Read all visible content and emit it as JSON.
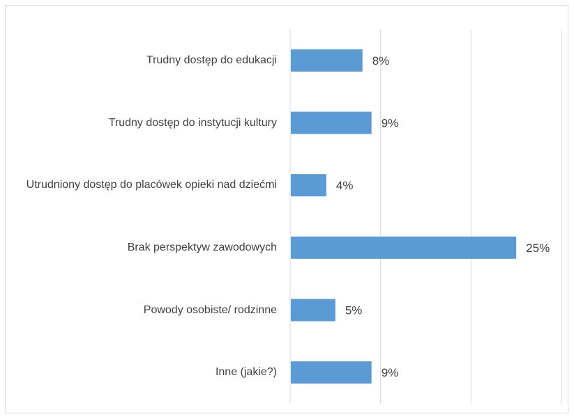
{
  "chart_data": {
    "type": "bar",
    "orientation": "horizontal",
    "categories": [
      "Trudny dostęp do edukacji",
      "Trudny dostęp do instytucji kultury",
      "Utrudniony dostęp do placówek opieki nad dziećmi",
      "Brak perspektyw zawodowych",
      "Powody osobiste/ rodzinne",
      "Inne (jakie?)"
    ],
    "values": [
      8,
      9,
      4,
      25,
      5,
      9
    ],
    "value_labels": [
      "8%",
      "9%",
      "4%",
      "25%",
      "5%",
      "9%"
    ],
    "xlim": [
      0,
      30
    ],
    "grid": true,
    "legend": "none",
    "bar_color": "#5b9bd5"
  }
}
